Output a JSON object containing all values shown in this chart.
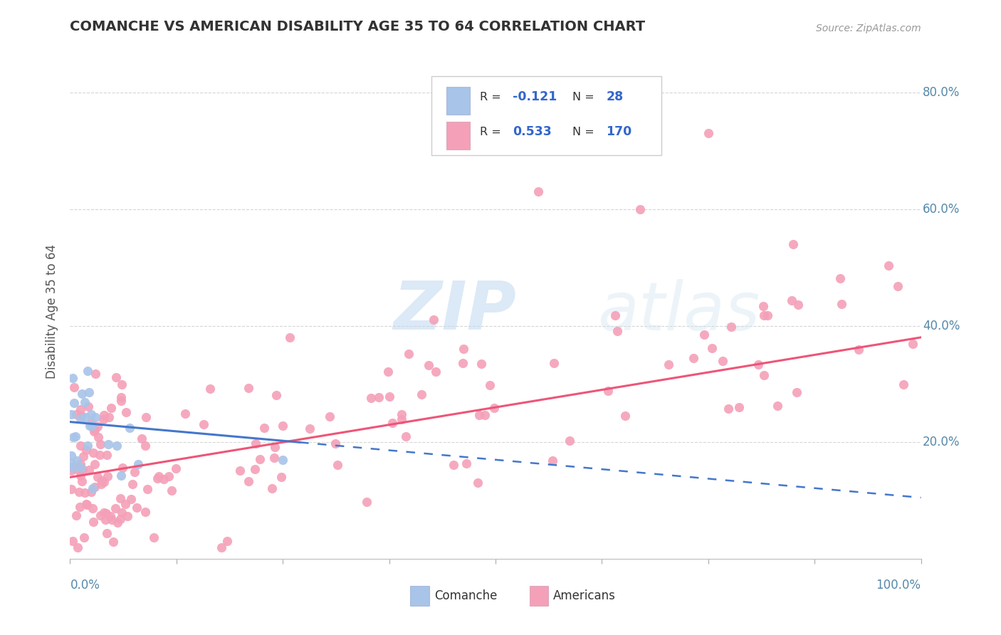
{
  "title": "COMANCHE VS AMERICAN DISABILITY AGE 35 TO 64 CORRELATION CHART",
  "source": "Source: ZipAtlas.com",
  "ylabel": "Disability Age 35 to 64",
  "legend_r1": "-0.121",
  "legend_n1": "28",
  "legend_r2": "0.533",
  "legend_n2": "170",
  "comanche_color": "#a8c4e8",
  "american_color": "#f4a0b8",
  "comanche_line_color": "#4477cc",
  "american_line_color": "#ee5577",
  "background_color": "#ffffff",
  "grid_color": "#cccccc",
  "watermark_zip": "ZIP",
  "watermark_atlas": "atlas",
  "xlim": [
    0.0,
    1.0
  ],
  "ylim": [
    0.0,
    0.85
  ],
  "yticks": [
    0.2,
    0.4,
    0.6,
    0.8
  ],
  "ytick_labels": [
    "20.0%",
    "40.0%",
    "60.0%",
    "80.0%"
  ]
}
